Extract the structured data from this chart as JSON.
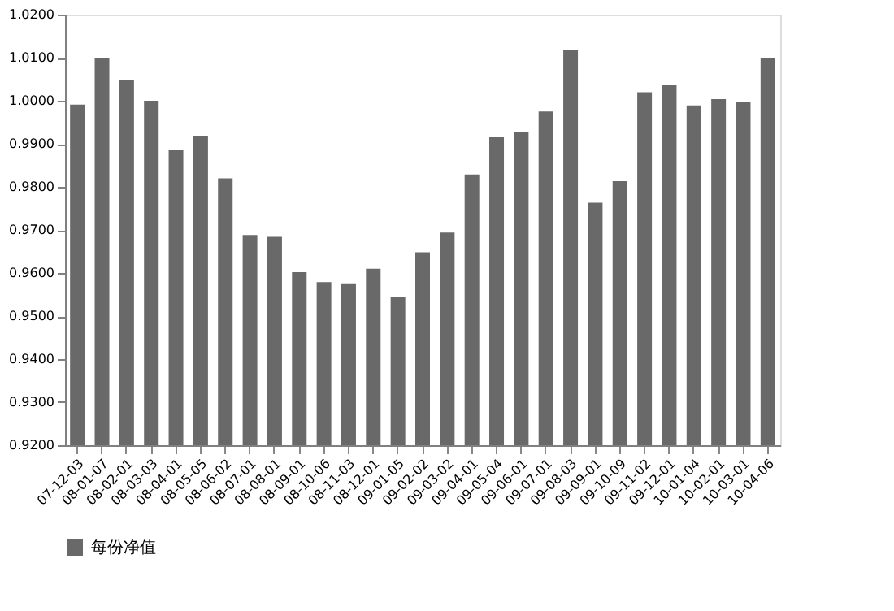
{
  "chart_data": {
    "type": "bar",
    "categories": [
      "07-12-03",
      "08-01-07",
      "08-02-01",
      "08-03-03",
      "08-04-01",
      "08-05-05",
      "08-06-02",
      "08-07-01",
      "08-08-01",
      "08-09-01",
      "08-10-06",
      "08-11-03",
      "08-12-01",
      "09-01-05",
      "09-02-02",
      "09-03-02",
      "09-04-01",
      "09-05-04",
      "09-06-01",
      "09-07-01",
      "09-08-03",
      "09-09-01",
      "09-10-09",
      "09-11-02",
      "09-12-01",
      "10-01-04",
      "10-02-01",
      "10-03-01",
      "10-04-06"
    ],
    "series": [
      {
        "name": "每份净值",
        "color": "#696969",
        "values": [
          0.9991,
          1.0098,
          1.0048,
          1.0,
          0.9885,
          0.9919,
          0.982,
          0.9688,
          0.9684,
          0.9602,
          0.9579,
          0.9576,
          0.961,
          0.9545,
          0.9648,
          0.9694,
          0.9829,
          0.9917,
          0.9928,
          0.9975,
          1.0118,
          0.9763,
          0.9813,
          1.002,
          1.0036,
          0.9989,
          1.0004,
          0.9998,
          1.0099
        ]
      }
    ],
    "ylim": [
      0.92,
      1.02
    ],
    "yticks": [
      {
        "value": 0.92,
        "label": "0.9200"
      },
      {
        "value": 0.93,
        "label": "0.9300"
      },
      {
        "value": 0.94,
        "label": "0.9400"
      },
      {
        "value": 0.95,
        "label": "0.9500"
      },
      {
        "value": 0.96,
        "label": "0.9600"
      },
      {
        "value": 0.97,
        "label": "0.9700"
      },
      {
        "value": 0.98,
        "label": "0.9800"
      },
      {
        "value": 0.99,
        "label": "0.9900"
      },
      {
        "value": 1.0,
        "label": "1.0000"
      },
      {
        "value": 1.01,
        "label": "1.0100"
      },
      {
        "value": 1.02,
        "label": "1.0200"
      }
    ],
    "grid": false,
    "legend": "bottom"
  }
}
